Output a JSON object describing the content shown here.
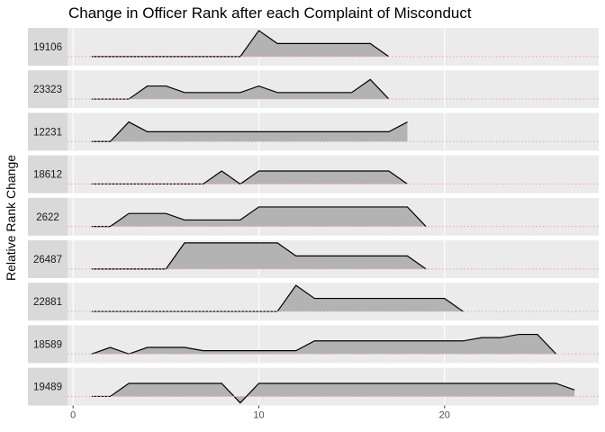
{
  "chart_data": {
    "type": "area",
    "title": "Change in Officer Rank after each Complaint of Misconduct",
    "xlabel": "",
    "ylabel": "Relative Rank Change",
    "xlim": [
      -0.3,
      28.3
    ],
    "x_ticks": [
      0,
      10,
      20
    ],
    "ylim": [
      -0.7,
      2.2
    ],
    "grid": true,
    "legend": "none",
    "colors": {
      "panel_bg": "#ebebeb",
      "strip_bg": "#d9d9d9",
      "area_fill": "#b3b3b3",
      "line": "#000000",
      "zero_line": "#e8a0b4",
      "grid": "#ffffff"
    },
    "panels": [
      {
        "name": "19106",
        "x": [
          1,
          2,
          3,
          4,
          5,
          6,
          7,
          8,
          9,
          10,
          11,
          12,
          13,
          14,
          15,
          16,
          17
        ],
        "y": [
          0,
          0,
          0,
          0,
          0,
          0,
          0,
          0,
          0,
          2,
          1,
          1,
          1,
          1,
          1,
          1,
          0
        ]
      },
      {
        "name": "23323",
        "x": [
          1,
          2,
          3,
          4,
          5,
          6,
          7,
          8,
          9,
          10,
          11,
          12,
          13,
          14,
          15,
          16,
          17
        ],
        "y": [
          0,
          0,
          0,
          1,
          1,
          0.5,
          0.5,
          0.5,
          0.5,
          1,
          0.5,
          0.5,
          0.5,
          0.5,
          0.5,
          1.5,
          0
        ]
      },
      {
        "name": "12231",
        "x": [
          1,
          2,
          3,
          4,
          5,
          6,
          7,
          8,
          9,
          10,
          11,
          12,
          13,
          14,
          15,
          16,
          17,
          18
        ],
        "y": [
          0,
          0,
          1.5,
          0.75,
          0.75,
          0.75,
          0.75,
          0.75,
          0.75,
          0.75,
          0.75,
          0.75,
          0.75,
          0.75,
          0.75,
          0.75,
          0.75,
          1.5
        ]
      },
      {
        "name": "18612",
        "x": [
          1,
          2,
          3,
          4,
          5,
          6,
          7,
          8,
          9,
          10,
          11,
          12,
          13,
          14,
          15,
          16,
          17,
          18
        ],
        "y": [
          0,
          0,
          0,
          0,
          0,
          0,
          0,
          1,
          0,
          1,
          1,
          1,
          1,
          1,
          1,
          1,
          1,
          0
        ]
      },
      {
        "name": "2622",
        "x": [
          1,
          2,
          3,
          4,
          5,
          6,
          7,
          8,
          9,
          10,
          11,
          12,
          13,
          14,
          15,
          16,
          17,
          18,
          19
        ],
        "y": [
          0,
          0,
          1,
          1,
          1,
          0.5,
          0.5,
          0.5,
          0.5,
          1.5,
          1.5,
          1.5,
          1.5,
          1.5,
          1.5,
          1.5,
          1.5,
          1.5,
          0
        ]
      },
      {
        "name": "26487",
        "x": [
          1,
          2,
          3,
          4,
          5,
          6,
          7,
          8,
          9,
          10,
          11,
          12,
          13,
          14,
          15,
          16,
          17,
          18,
          19
        ],
        "y": [
          0,
          0,
          0,
          0,
          0,
          2,
          2,
          2,
          2,
          2,
          2,
          1,
          1,
          1,
          1,
          1,
          1,
          1,
          0
        ]
      },
      {
        "name": "22881",
        "x": [
          1,
          2,
          3,
          4,
          5,
          6,
          7,
          8,
          9,
          10,
          11,
          12,
          13,
          14,
          15,
          16,
          17,
          18,
          19,
          20,
          21
        ],
        "y": [
          0,
          0,
          0,
          0,
          0,
          0,
          0,
          0,
          0,
          0,
          0,
          2,
          1,
          1,
          1,
          1,
          1,
          1,
          1,
          1,
          0
        ]
      },
      {
        "name": "18589",
        "x": [
          1,
          2,
          3,
          4,
          5,
          6,
          7,
          8,
          9,
          10,
          11,
          12,
          13,
          14,
          15,
          16,
          17,
          18,
          19,
          20,
          21,
          22,
          23,
          24,
          25,
          26
        ],
        "y": [
          0,
          0.5,
          0,
          0.5,
          0.5,
          0.5,
          0.25,
          0.25,
          0.25,
          0.25,
          0.25,
          0.25,
          1,
          1,
          1,
          1,
          1,
          1,
          1,
          1,
          1,
          1.25,
          1.25,
          1.5,
          1.5,
          0
        ]
      },
      {
        "name": "19489",
        "x": [
          1,
          2,
          3,
          4,
          5,
          6,
          7,
          8,
          9,
          10,
          11,
          12,
          13,
          14,
          15,
          16,
          17,
          18,
          19,
          20,
          21,
          22,
          23,
          24,
          25,
          26,
          27
        ],
        "y": [
          0,
          0,
          1,
          1,
          1,
          1,
          1,
          1,
          -0.5,
          1,
          1,
          1,
          1,
          1,
          1,
          1,
          1,
          1,
          1,
          1,
          1,
          1,
          1,
          1,
          1,
          1,
          0.5
        ]
      }
    ]
  }
}
